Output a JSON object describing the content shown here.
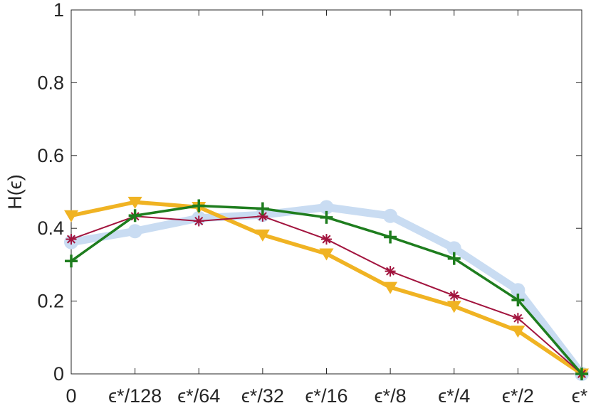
{
  "chart_data": {
    "type": "line",
    "title": "",
    "xlabel": "",
    "ylabel": "H(ϵ)",
    "categories": [
      "0",
      "ϵ*/128",
      "ϵ*/64",
      "ϵ*/32",
      "ϵ*/16",
      "ϵ*/8",
      "ϵ*/4",
      "ϵ*/2",
      "ϵ*"
    ],
    "ylim": [
      0,
      1
    ],
    "yticks": [
      "0",
      "0.2",
      "0.4",
      "0.6",
      "0.8",
      "1"
    ],
    "grid": false,
    "legend": "none",
    "series": [
      {
        "color": "#c9dcf2",
        "marker": "circle",
        "values": [
          0.362,
          0.392,
          0.428,
          0.437,
          0.458,
          0.434,
          0.345,
          0.23,
          0.0
        ]
      },
      {
        "color": "#f0b323",
        "marker": "triangle-down",
        "values": [
          0.435,
          0.472,
          0.458,
          0.382,
          0.33,
          0.238,
          0.186,
          0.118,
          0.0
        ]
      },
      {
        "color": "#a2143e",
        "marker": "asterisk",
        "values": [
          0.37,
          0.433,
          0.42,
          0.433,
          0.37,
          0.282,
          0.215,
          0.153,
          0.0
        ]
      },
      {
        "color": "#1e7d1e",
        "marker": "plus",
        "values": [
          0.31,
          0.435,
          0.462,
          0.454,
          0.43,
          0.376,
          0.317,
          0.203,
          0.0
        ]
      }
    ]
  }
}
